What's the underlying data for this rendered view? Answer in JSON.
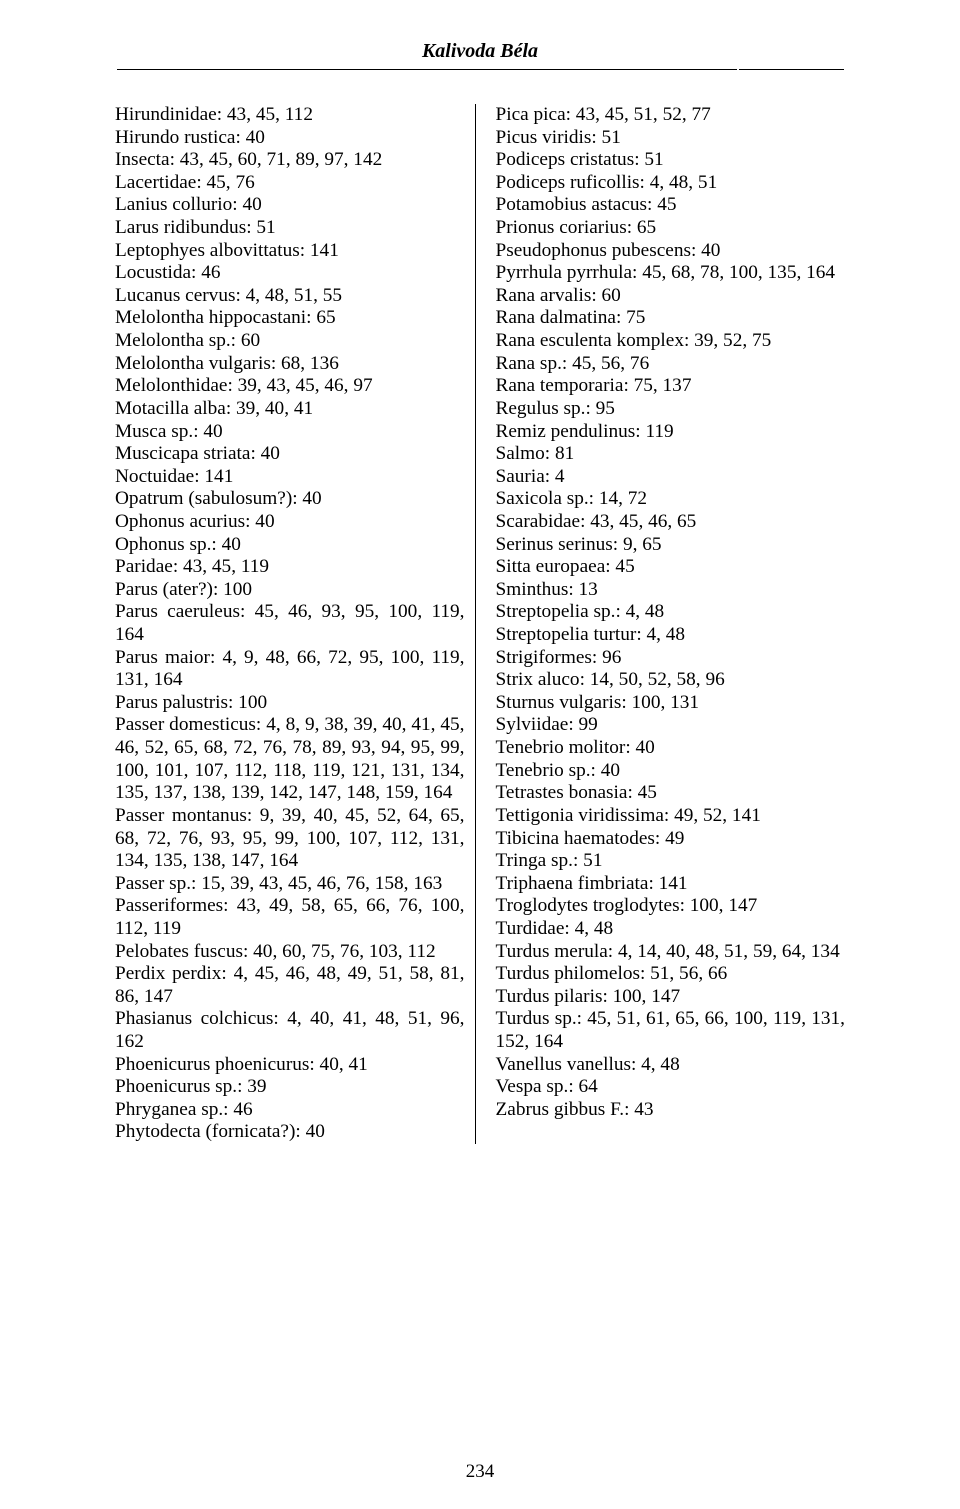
{
  "header": {
    "author": "Kalivoda Béla"
  },
  "pageNumber": "234",
  "leftColumn": [
    "Hirundinidae: 43, 45, 112",
    "Hirundo rustica: 40",
    "Insecta: 43, 45, 60, 71, 89, 97, 142",
    "Lacertidae: 45, 76",
    "Lanius collurio: 40",
    "Larus ridibundus: 51",
    "Leptophyes albovittatus: 141",
    "Locustida: 46",
    "Lucanus cervus: 4, 48, 51, 55",
    "Melolontha hippocastani: 65",
    "Melolontha sp.: 60",
    "Melolontha vulgaris: 68, 136",
    "Melolonthidae: 39, 43, 45, 46, 97",
    "Motacilla alba: 39, 40, 41",
    "Musca sp.: 40",
    "Muscicapa striata: 40",
    "Noctuidae: 141",
    "Opatrum (sabulosum?): 40",
    "Ophonus acurius: 40",
    "Ophonus sp.: 40",
    "Paridae: 43, 45, 119",
    "Parus (ater?): 100",
    "Parus caeruleus: 45, 46, 93, 95, 100, 119, 164",
    "Parus maior: 4, 9, 48, 66, 72, 95, 100, 119, 131, 164",
    "Parus palustris: 100",
    "Passer domesticus: 4, 8, 9, 38, 39, 40, 41, 45, 46, 52, 65, 68, 72, 76, 78, 89, 93, 94, 95, 99, 100, 101, 107, 112, 118, 119, 121, 131, 134, 135, 137, 138, 139, 142, 147, 148, 159, 164",
    "Passer montanus: 9, 39, 40, 45, 52, 64, 65, 68, 72, 76, 93, 95, 99, 100, 107, 112, 131, 134, 135, 138, 147, 164",
    "Passer sp.: 15, 39, 43, 45, 46, 76, 158, 163",
    "Passeriformes: 43, 49, 58, 65, 66, 76, 100, 112, 119",
    "Pelobates fuscus: 40, 60, 75, 76, 103, 112",
    "Perdix perdix: 4, 45, 46, 48, 49, 51, 58, 81, 86, 147",
    "Phasianus colchicus: 4, 40, 41, 48, 51, 96, 162",
    "Phoenicurus phoenicurus: 40, 41",
    "Phoenicurus sp.: 39",
    "Phryganea sp.: 46",
    "Phytodecta (fornicata?): 40"
  ],
  "rightColumn": [
    "Pica pica: 43, 45, 51, 52, 77",
    "Picus viridis: 51",
    "Podiceps cristatus: 51",
    "Podiceps ruficollis: 4, 48, 51",
    "Potamobius astacus: 45",
    "Prionus coriarius: 65",
    "Pseudophonus pubescens: 40",
    "Pyrrhula pyrrhula: 45, 68, 78, 100, 135, 164",
    "Rana arvalis: 60",
    "Rana dalmatina: 75",
    "Rana esculenta komplex: 39, 52, 75",
    "Rana sp.: 45, 56, 76",
    "Rana temporaria: 75, 137",
    "Regulus sp.: 95",
    "Remiz pendulinus: 119",
    "Salmo: 81",
    "Sauria: 4",
    "Saxicola sp.: 14, 72",
    "Scarabidae: 43, 45, 46, 65",
    "Serinus serinus: 9, 65",
    "Sitta europaea: 45",
    "Sminthus: 13",
    "Streptopelia sp.: 4, 48",
    "Streptopelia turtur: 4, 48",
    "Strigiformes: 96",
    "Strix aluco: 14, 50, 52, 58, 96",
    "Sturnus vulgaris: 100, 131",
    "Sylviidae: 99",
    "Tenebrio molitor: 40",
    "Tenebrio sp.: 40",
    "Tetrastes bonasia: 45",
    "Tettigonia viridissima: 49, 52, 141",
    "Tibicina haematodes: 49",
    "Tringa sp.: 51",
    "Triphaena fimbriata: 141",
    "Troglodytes troglodytes: 100, 147",
    "Turdidae: 4, 48",
    "Turdus merula: 4, 14, 40, 48, 51, 59, 64, 134",
    "Turdus philomelos: 51, 56, 66",
    "Turdus pilaris: 100, 147",
    "Turdus sp.: 45, 51, 61, 65, 66, 100, 119, 131, 152, 164",
    "Vanellus vanellus: 4, 48",
    "Vespa sp.: 64",
    "Zabrus gibbus F.: 43"
  ]
}
